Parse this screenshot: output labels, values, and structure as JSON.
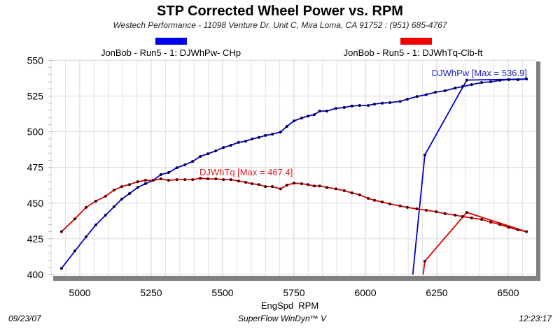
{
  "chart_data": {
    "type": "line",
    "title": "STP Corrected Wheel Power vs. RPM",
    "subtitle": "Westech Performance - 11098 Venture Dr. Unit C, Mira Loma, CA 91752 : (951) 685-4767",
    "xlabel": "EngSpd  RPM",
    "ylabel": "",
    "xlim": [
      4897,
      6598
    ],
    "ylim": [
      400,
      550
    ],
    "x_ticks": [
      5000,
      5250,
      5500,
      5750,
      6000,
      6250,
      6500
    ],
    "y_ticks": [
      400,
      425,
      450,
      475,
      500,
      525,
      550
    ],
    "grid": true,
    "legend_placement": "top",
    "series": [
      {
        "name": "JonBob - Run5 - 1: DJWhPw- CHp",
        "annotation": "DJWhPw [Max = 536.9]",
        "color": "#0000cc",
        "marker_color": "#000040",
        "points": [
          [
            4936,
            404.3
          ],
          [
            4983,
            416.5
          ],
          [
            5022,
            426.4
          ],
          [
            5056,
            434.7
          ],
          [
            5090,
            441.5
          ],
          [
            5120,
            447.5
          ],
          [
            5147,
            452.8
          ],
          [
            5174,
            456.7
          ],
          [
            5203,
            461
          ],
          [
            5230,
            463.6
          ],
          [
            5257,
            466
          ],
          [
            5284,
            470
          ],
          [
            5311,
            471.4
          ],
          [
            5340,
            474.8
          ],
          [
            5368,
            476.8
          ],
          [
            5395,
            479.2
          ],
          [
            5422,
            482.7
          ],
          [
            5449,
            484.6
          ],
          [
            5476,
            486.6
          ],
          [
            5503,
            489
          ],
          [
            5529,
            490.5
          ],
          [
            5556,
            492.5
          ],
          [
            5581,
            493.4
          ],
          [
            5603,
            494.9
          ],
          [
            5627,
            496
          ],
          [
            5650,
            497.4
          ],
          [
            5674,
            498.3
          ],
          [
            5703,
            499.8
          ],
          [
            5725,
            503.7
          ],
          [
            5750,
            507.6
          ],
          [
            5777,
            509.6
          ],
          [
            5799,
            511
          ],
          [
            5821,
            512
          ],
          [
            5840,
            514.5
          ],
          [
            5865,
            514.5
          ],
          [
            5897,
            516.4
          ],
          [
            5926,
            517
          ],
          [
            5953,
            518
          ],
          [
            5980,
            518.4
          ],
          [
            6010,
            518.4
          ],
          [
            6032,
            519.4
          ],
          [
            6059,
            520
          ],
          [
            6086,
            520.4
          ],
          [
            6122,
            521.3
          ],
          [
            6147,
            522.8
          ],
          [
            6181,
            524.7
          ],
          [
            6213,
            526
          ],
          [
            6245,
            527.7
          ],
          [
            6279,
            528.7
          ],
          [
            6314,
            530.6
          ],
          [
            6340,
            531.6
          ],
          [
            6372,
            533
          ],
          [
            6407,
            534.5
          ],
          [
            6439,
            535
          ],
          [
            6471,
            536
          ],
          [
            6502,
            536.5
          ],
          [
            6534,
            536.5
          ],
          [
            6564,
            536.9
          ],
          [
            6355,
            536.2
          ],
          [
            6208,
            483.7
          ],
          [
            6165,
            398
          ]
        ]
      },
      {
        "name": "JonBob - Run5 - 1: DJWhTq-Clb-ft",
        "annotation": "DJWhTq [Max = 467.4]",
        "color": "#dd0000",
        "marker_color": "#400000",
        "points": [
          [
            4936,
            430
          ],
          [
            4983,
            439
          ],
          [
            5022,
            447
          ],
          [
            5056,
            451.4
          ],
          [
            5090,
            454.8
          ],
          [
            5120,
            459.2
          ],
          [
            5147,
            461.6
          ],
          [
            5174,
            463
          ],
          [
            5203,
            465
          ],
          [
            5230,
            466
          ],
          [
            5257,
            466
          ],
          [
            5284,
            467
          ],
          [
            5311,
            466
          ],
          [
            5340,
            466.5
          ],
          [
            5368,
            466.5
          ],
          [
            5395,
            466.5
          ],
          [
            5422,
            467.4
          ],
          [
            5449,
            467
          ],
          [
            5476,
            467
          ],
          [
            5503,
            466.5
          ],
          [
            5529,
            466.5
          ],
          [
            5556,
            465.5
          ],
          [
            5581,
            464.6
          ],
          [
            5603,
            463.6
          ],
          [
            5627,
            463
          ],
          [
            5650,
            461.6
          ],
          [
            5674,
            461.6
          ],
          [
            5703,
            460
          ],
          [
            5725,
            462.6
          ],
          [
            5750,
            464
          ],
          [
            5777,
            463.6
          ],
          [
            5799,
            463
          ],
          [
            5821,
            462
          ],
          [
            5840,
            462
          ],
          [
            5865,
            461
          ],
          [
            5897,
            460
          ],
          [
            5926,
            458.7
          ],
          [
            5953,
            457.2
          ],
          [
            5980,
            455.8
          ],
          [
            6010,
            453.3
          ],
          [
            6032,
            452
          ],
          [
            6059,
            450.8
          ],
          [
            6086,
            449.4
          ],
          [
            6122,
            448
          ],
          [
            6147,
            447
          ],
          [
            6180,
            446
          ],
          [
            6213,
            445
          ],
          [
            6248,
            444
          ],
          [
            6279,
            442.6
          ],
          [
            6314,
            441.6
          ],
          [
            6340,
            440.6
          ],
          [
            6372,
            439.6
          ],
          [
            6407,
            438.6
          ],
          [
            6439,
            436.7
          ],
          [
            6471,
            435
          ],
          [
            6502,
            433
          ],
          [
            6534,
            431.3
          ],
          [
            6564,
            430
          ],
          [
            6355,
            443.5
          ],
          [
            6208,
            409.3
          ],
          [
            6201,
            398
          ]
        ]
      }
    ]
  },
  "footer": {
    "date": "09/23/07",
    "software": "SuperFlow WinDyn™ V",
    "time": "12:23:17"
  }
}
